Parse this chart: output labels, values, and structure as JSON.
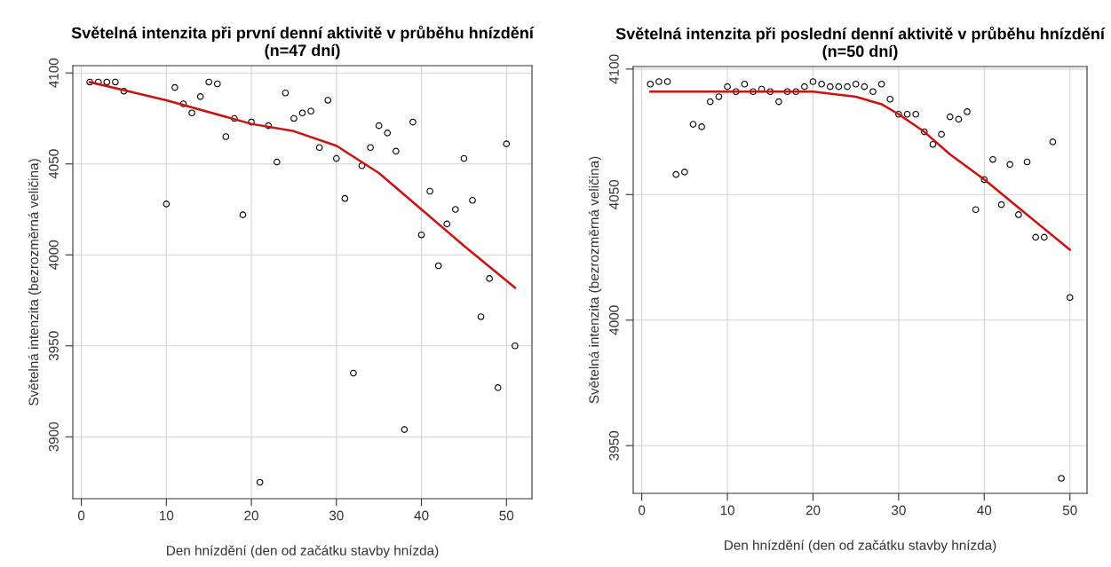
{
  "chart_data": [
    {
      "type": "scatter",
      "title": "Světelná intenzita při první denní aktivitě v průběhu hnízdění\n(n=47 dní)",
      "xlabel": "Den hnízdění (den od začátku stavby hnízda)",
      "ylabel": "Světelná intenzita (bezrozměrná veličina)",
      "series": [
        {
          "color": "#000000",
          "marker": "circle",
          "x": [
            1,
            2,
            3,
            4,
            5,
            10,
            11,
            12,
            13,
            14,
            15,
            16,
            17,
            18,
            19,
            20,
            21,
            22,
            23,
            24,
            25,
            26,
            27,
            28,
            29,
            30,
            31,
            32,
            33,
            34,
            35,
            36,
            37,
            38,
            39,
            40,
            41,
            42,
            43,
            44,
            45,
            46,
            47,
            48,
            49,
            50,
            51
          ],
          "values": [
            4095,
            4095,
            4095,
            4095,
            4090,
            4028,
            4092,
            4083,
            4078,
            4087,
            4095,
            4094,
            4065,
            4075,
            4022,
            4073,
            3875,
            4071,
            4051,
            4089,
            4075,
            4078,
            4079,
            4059,
            4085,
            4053,
            4031,
            3935,
            4049,
            4059,
            4071,
            4067,
            4057,
            3904,
            4073,
            4011,
            4035,
            3994,
            4017,
            4025,
            4053,
            4030,
            3966,
            3987,
            3927,
            4061,
            3950
          ]
        },
        {
          "type": "line",
          "color": "#cc1111",
          "x": [
            1,
            10,
            20,
            25,
            30,
            35,
            40,
            45,
            51
          ],
          "values": [
            4095,
            4085,
            4072,
            4068,
            4060,
            4045,
            4025,
            4005,
            3982
          ]
        }
      ],
      "xlim": [
        -1,
        53
      ],
      "xticks": [
        0,
        10,
        20,
        30,
        40,
        50
      ],
      "ylim": [
        3866,
        4104
      ],
      "yticks": [
        3900,
        3950,
        4000,
        4050,
        4100
      ],
      "grid": true,
      "legend": false
    },
    {
      "type": "scatter",
      "title": "Světelná intenzita při poslední denní aktivitě v průběhu hnízdění\n(n=50 dní)",
      "xlabel": "Den hnízdění (den od začátku stavby hnízda)",
      "ylabel": "Světelná intenzita (bezrozměrná veličina)",
      "series": [
        {
          "color": "#000000",
          "marker": "circle",
          "x": [
            1,
            2,
            3,
            4,
            5,
            6,
            7,
            8,
            9,
            10,
            11,
            12,
            13,
            14,
            15,
            16,
            17,
            18,
            19,
            20,
            21,
            22,
            23,
            24,
            25,
            26,
            27,
            28,
            29,
            30,
            31,
            32,
            33,
            34,
            35,
            36,
            37,
            38,
            39,
            40,
            41,
            42,
            43,
            44,
            45,
            46,
            47,
            48,
            49,
            50
          ],
          "values": [
            4094,
            4095,
            4095,
            4058,
            4059,
            4078,
            4077,
            4087,
            4089,
            4093,
            4091,
            4094,
            4091,
            4092,
            4091,
            4087,
            4091,
            4091,
            4093,
            4095,
            4094,
            4093,
            4093,
            4093,
            4094,
            4093,
            4091,
            4094,
            4088,
            4082,
            4082,
            4082,
            4075,
            4070,
            4074,
            4081,
            4080,
            4083,
            4044,
            4056,
            4064,
            4046,
            4062,
            4042,
            4063,
            4033,
            4033,
            4071,
            3937,
            4009
          ]
        },
        {
          "type": "line",
          "color": "#cc1111",
          "x": [
            1,
            20,
            25,
            28,
            30,
            33,
            36,
            40,
            45,
            50
          ],
          "values": [
            4091,
            4091,
            4089,
            4086,
            4082,
            4075,
            4066,
            4056,
            4042,
            4028
          ]
        }
      ],
      "xlim": [
        -1,
        52
      ],
      "xticks": [
        0,
        10,
        20,
        30,
        40,
        50
      ],
      "ylim": [
        3931,
        4101
      ],
      "yticks": [
        3950,
        4000,
        4050,
        4100
      ],
      "grid": true,
      "legend": false
    }
  ]
}
